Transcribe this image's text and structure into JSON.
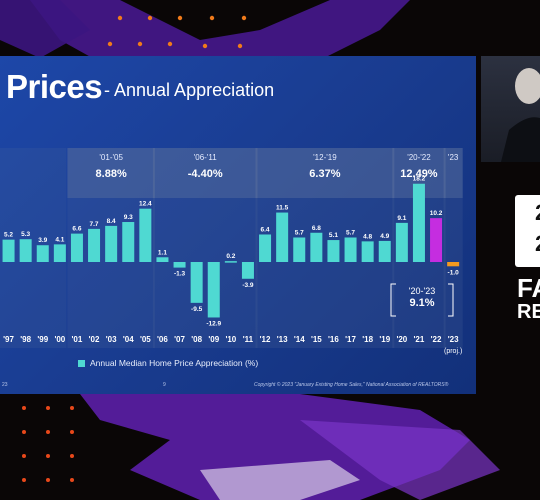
{
  "slide": {
    "title": "Prices",
    "subtitle": "- Annual Appreciation",
    "legend": "Annual Median Home Price Appreciation (%)",
    "copyright": "Copyright © 2023 \"January Existing Home Sales,\" National Association of REALTORS®",
    "page_number": "9",
    "footer_left": "23"
  },
  "colors": {
    "slide_bg": "#1a3d92",
    "bar_teal": "#4fd9d2",
    "bar_magenta": "#c52de0",
    "bar_orange": "#f59a1e",
    "period_panel": "#5a6f9c",
    "backdrop_purple": "#5b1fa8",
    "backdrop_orange": "#f07a1a"
  },
  "chart_data": {
    "type": "bar",
    "ylabel": "",
    "xlabel": "",
    "title": "",
    "categories": [
      "'97",
      "'98",
      "'99",
      "'00",
      "'01",
      "'02",
      "'03",
      "'04",
      "'05",
      "'06",
      "'07",
      "'08",
      "'09",
      "'10",
      "'11",
      "'12",
      "'13",
      "'14",
      "'15",
      "'16",
      "'17",
      "'18",
      "'19",
      "'20",
      "'21",
      "'22",
      "'23"
    ],
    "values": [
      5.2,
      5.3,
      3.9,
      4.1,
      6.6,
      7.7,
      8.4,
      9.3,
      12.4,
      1.1,
      -1.3,
      -9.5,
      -12.9,
      0.2,
      -3.9,
      6.4,
      11.5,
      5.7,
      6.8,
      5.1,
      5.7,
      4.8,
      4.9,
      9.1,
      18.2,
      10.2,
      -1.0
    ],
    "value_labels": [
      "5.2",
      "5.3",
      "3.9",
      "4.1",
      "6.6",
      "7.7",
      "8.4",
      "9.3",
      "12.4",
      "1.1",
      "-1.3",
      "-9.5",
      "-12.9",
      "0.2",
      "-3.9",
      "6.4",
      "11.5",
      "5.7",
      "6.8",
      "5.1",
      "5.7",
      "4.8",
      "4.9",
      "9.1",
      "18.2",
      "10.2",
      "-1.0"
    ],
    "bar_colors": [
      "teal",
      "teal",
      "teal",
      "teal",
      "teal",
      "teal",
      "teal",
      "teal",
      "teal",
      "teal",
      "teal",
      "teal",
      "teal",
      "teal",
      "teal",
      "teal",
      "teal",
      "teal",
      "teal",
      "teal",
      "teal",
      "teal",
      "teal",
      "teal",
      "teal",
      "magenta",
      "orange"
    ],
    "last_category_note": "(proj.)",
    "ylim": [
      -14,
      22
    ],
    "grid": false,
    "legend_position": "bottom-left",
    "periods": [
      {
        "label": "'01-'05",
        "average": "8.88%",
        "start": 4,
        "end": 8
      },
      {
        "label": "'06-'11",
        "average": "-4.40%",
        "start": 9,
        "end": 14
      },
      {
        "label": "'12-'19",
        "average": "6.37%",
        "start": 15,
        "end": 22
      },
      {
        "label": "'20-'22",
        "average": "12.49%",
        "start": 23,
        "end": 25
      },
      {
        "label": "'23",
        "average": "",
        "start": 26,
        "end": 26
      }
    ],
    "callout": {
      "label": "'20-'23",
      "value": "9.1%"
    }
  },
  "brand": {
    "line1": "2",
    "line2": "2",
    "word1": "FA",
    "word2": "RE"
  }
}
